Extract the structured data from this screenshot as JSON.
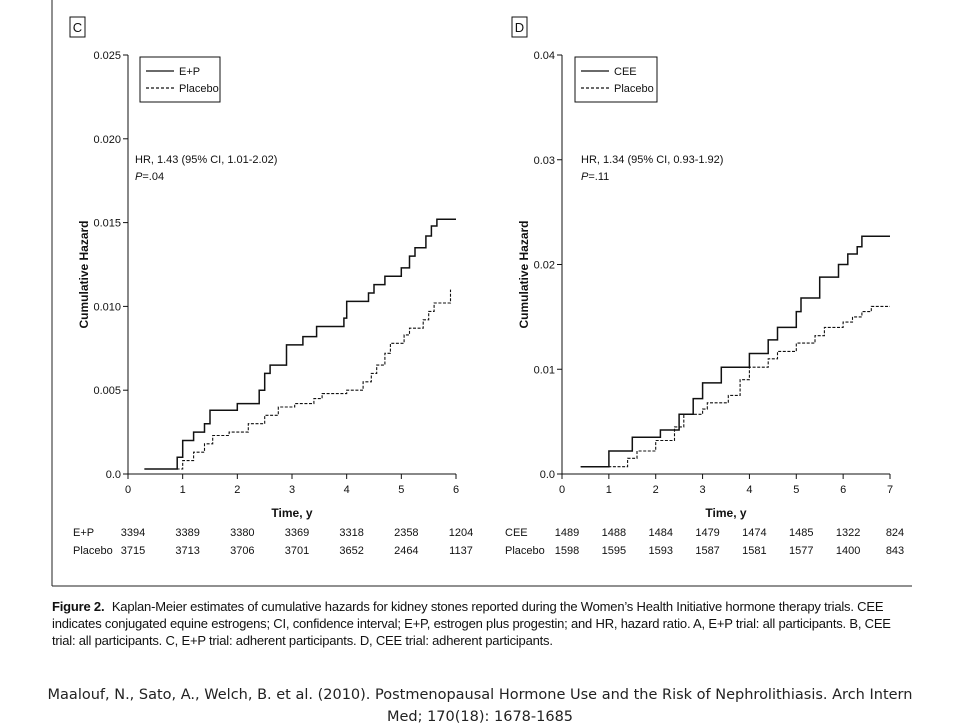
{
  "figure_caption": {
    "label": "Figure 2.",
    "text": "Kaplan-Meier estimates of cumulative hazards for kidney stones reported during the Women’s Health Initiative hormone therapy trials. CEE indicates conjugated equine estrogens; CI, confidence interval; E+P, estrogen plus progestin; and HR, hazard ratio. A, E+P trial: all participants. B, CEE trial: all participants. C, E+P trial: adherent participants. D, CEE trial: adherent participants."
  },
  "citation": {
    "line1": "Maalouf, N., Sato, A., Welch, B. et al. (2010). Postmenopausal Hormone Use and the Risk of Nephrolithiasis. Arch Intern",
    "line2": "Med; 170(18): 1678-1685"
  },
  "chart_data": [
    {
      "panel": "C",
      "type": "line",
      "xlabel": "Time, y",
      "ylabel": "Cumulative Hazard",
      "xlim": [
        0,
        6
      ],
      "ylim": [
        0,
        0.025
      ],
      "x_ticks": [
        0,
        1,
        2,
        3,
        4,
        5,
        6
      ],
      "y_ticks": [
        "0.0",
        "0.005",
        "0.010",
        "0.015",
        "0.020",
        "0.025"
      ],
      "legend": {
        "position": "top-left",
        "entries": [
          {
            "label": "E+P",
            "style": "solid"
          },
          {
            "label": "Placebo",
            "style": "dashed"
          }
        ]
      },
      "annotation": {
        "hr": "HR, 1.43 (95% CI, 1.01-2.02)",
        "p": "P=.04"
      },
      "series": [
        {
          "name": "E+P",
          "style": "solid",
          "points": [
            [
              0.3,
              0.0003
            ],
            [
              0.9,
              0.0003
            ],
            [
              0.9,
              0.001
            ],
            [
              1.0,
              0.001
            ],
            [
              1.0,
              0.002
            ],
            [
              1.2,
              0.002
            ],
            [
              1.2,
              0.0025
            ],
            [
              1.4,
              0.0025
            ],
            [
              1.4,
              0.003
            ],
            [
              1.5,
              0.003
            ],
            [
              1.5,
              0.0038
            ],
            [
              2.0,
              0.0038
            ],
            [
              2.0,
              0.0042
            ],
            [
              2.4,
              0.0042
            ],
            [
              2.4,
              0.005
            ],
            [
              2.5,
              0.005
            ],
            [
              2.5,
              0.006
            ],
            [
              2.6,
              0.006
            ],
            [
              2.6,
              0.0065
            ],
            [
              2.9,
              0.0065
            ],
            [
              2.9,
              0.0077
            ],
            [
              3.2,
              0.0077
            ],
            [
              3.2,
              0.0082
            ],
            [
              3.45,
              0.0082
            ],
            [
              3.45,
              0.0088
            ],
            [
              3.95,
              0.0088
            ],
            [
              3.95,
              0.0093
            ],
            [
              4.0,
              0.0093
            ],
            [
              4.0,
              0.0103
            ],
            [
              4.4,
              0.0103
            ],
            [
              4.4,
              0.0108
            ],
            [
              4.5,
              0.0108
            ],
            [
              4.5,
              0.0113
            ],
            [
              4.7,
              0.0113
            ],
            [
              4.7,
              0.0118
            ],
            [
              5.0,
              0.0118
            ],
            [
              5.0,
              0.0123
            ],
            [
              5.15,
              0.0123
            ],
            [
              5.15,
              0.013
            ],
            [
              5.25,
              0.013
            ],
            [
              5.25,
              0.0135
            ],
            [
              5.45,
              0.0135
            ],
            [
              5.45,
              0.0142
            ],
            [
              5.55,
              0.0142
            ],
            [
              5.55,
              0.0148
            ],
            [
              5.65,
              0.0148
            ],
            [
              5.65,
              0.0152
            ],
            [
              6.0,
              0.0152
            ]
          ]
        },
        {
          "name": "Placebo",
          "style": "dashed",
          "points": [
            [
              0.3,
              0.0003
            ],
            [
              1.0,
              0.0003
            ],
            [
              1.0,
              0.0008
            ],
            [
              1.2,
              0.0008
            ],
            [
              1.2,
              0.0013
            ],
            [
              1.4,
              0.0013
            ],
            [
              1.4,
              0.0018
            ],
            [
              1.55,
              0.0018
            ],
            [
              1.55,
              0.0023
            ],
            [
              1.85,
              0.0023
            ],
            [
              1.85,
              0.0025
            ],
            [
              2.2,
              0.0025
            ],
            [
              2.2,
              0.003
            ],
            [
              2.5,
              0.003
            ],
            [
              2.5,
              0.0035
            ],
            [
              2.75,
              0.0035
            ],
            [
              2.75,
              0.004
            ],
            [
              3.05,
              0.004
            ],
            [
              3.05,
              0.0042
            ],
            [
              3.4,
              0.0042
            ],
            [
              3.4,
              0.0045
            ],
            [
              3.55,
              0.0045
            ],
            [
              3.55,
              0.0048
            ],
            [
              4.0,
              0.0048
            ],
            [
              4.0,
              0.005
            ],
            [
              4.3,
              0.005
            ],
            [
              4.3,
              0.0055
            ],
            [
              4.45,
              0.0055
            ],
            [
              4.45,
              0.006
            ],
            [
              4.55,
              0.006
            ],
            [
              4.55,
              0.0065
            ],
            [
              4.7,
              0.0065
            ],
            [
              4.7,
              0.0072
            ],
            [
              4.8,
              0.0072
            ],
            [
              4.8,
              0.0078
            ],
            [
              5.05,
              0.0078
            ],
            [
              5.05,
              0.0083
            ],
            [
              5.15,
              0.0083
            ],
            [
              5.15,
              0.0087
            ],
            [
              5.4,
              0.0087
            ],
            [
              5.4,
              0.0092
            ],
            [
              5.5,
              0.0092
            ],
            [
              5.5,
              0.0097
            ],
            [
              5.6,
              0.0097
            ],
            [
              5.6,
              0.0102
            ],
            [
              5.9,
              0.0102
            ],
            [
              5.9,
              0.011
            ]
          ]
        }
      ],
      "risk_table": {
        "rows": [
          {
            "label": "E+P",
            "values": [
              "3394",
              "3389",
              "3380",
              "3369",
              "3318",
              "2358",
              "1204"
            ]
          },
          {
            "label": "Placebo",
            "values": [
              "3715",
              "3713",
              "3706",
              "3701",
              "3652",
              "2464",
              "1137"
            ]
          }
        ]
      }
    },
    {
      "panel": "D",
      "type": "line",
      "xlabel": "Time, y",
      "ylabel": "Cumulative Hazard",
      "xlim": [
        0,
        7
      ],
      "ylim": [
        0,
        0.04
      ],
      "x_ticks": [
        0,
        1,
        2,
        3,
        4,
        5,
        6,
        7
      ],
      "y_ticks": [
        "0.0",
        "0.01",
        "0.02",
        "0.03",
        "0.04"
      ],
      "legend": {
        "position": "top-left",
        "entries": [
          {
            "label": "CEE",
            "style": "solid"
          },
          {
            "label": "Placebo",
            "style": "dashed"
          }
        ]
      },
      "annotation": {
        "hr": "HR, 1.34 (95% CI, 0.93-1.92)",
        "p": "P=.11"
      },
      "series": [
        {
          "name": "CEE",
          "style": "solid",
          "points": [
            [
              0.4,
              0.0007
            ],
            [
              1.0,
              0.0007
            ],
            [
              1.0,
              0.0022
            ],
            [
              1.5,
              0.0022
            ],
            [
              1.5,
              0.0035
            ],
            [
              2.1,
              0.0035
            ],
            [
              2.1,
              0.0042
            ],
            [
              2.5,
              0.0042
            ],
            [
              2.5,
              0.0057
            ],
            [
              2.8,
              0.0057
            ],
            [
              2.8,
              0.0072
            ],
            [
              3.0,
              0.0072
            ],
            [
              3.0,
              0.0087
            ],
            [
              3.4,
              0.0087
            ],
            [
              3.4,
              0.0102
            ],
            [
              4.0,
              0.0102
            ],
            [
              4.0,
              0.0115
            ],
            [
              4.4,
              0.0115
            ],
            [
              4.4,
              0.0128
            ],
            [
              4.6,
              0.0128
            ],
            [
              4.6,
              0.014
            ],
            [
              5.0,
              0.014
            ],
            [
              5.0,
              0.0155
            ],
            [
              5.1,
              0.0155
            ],
            [
              5.1,
              0.0168
            ],
            [
              5.5,
              0.0168
            ],
            [
              5.5,
              0.0188
            ],
            [
              5.9,
              0.0188
            ],
            [
              5.9,
              0.02
            ],
            [
              6.1,
              0.02
            ],
            [
              6.1,
              0.021
            ],
            [
              6.3,
              0.021
            ],
            [
              6.3,
              0.0217
            ],
            [
              6.4,
              0.0217
            ],
            [
              6.4,
              0.0227
            ],
            [
              6.5,
              0.0227
            ],
            [
              6.5,
              0.0227
            ],
            [
              7.0,
              0.0227
            ]
          ]
        },
        {
          "name": "Placebo",
          "style": "dashed",
          "points": [
            [
              0.4,
              0.0007
            ],
            [
              1.4,
              0.0007
            ],
            [
              1.4,
              0.0015
            ],
            [
              1.6,
              0.0015
            ],
            [
              1.6,
              0.0022
            ],
            [
              2.0,
              0.0022
            ],
            [
              2.0,
              0.0032
            ],
            [
              2.4,
              0.0032
            ],
            [
              2.4,
              0.0045
            ],
            [
              2.6,
              0.0045
            ],
            [
              2.6,
              0.0057
            ],
            [
              3.0,
              0.0057
            ],
            [
              3.0,
              0.0062
            ],
            [
              3.1,
              0.0062
            ],
            [
              3.1,
              0.0068
            ],
            [
              3.55,
              0.0068
            ],
            [
              3.55,
              0.0075
            ],
            [
              3.8,
              0.0075
            ],
            [
              3.8,
              0.009
            ],
            [
              4.0,
              0.009
            ],
            [
              4.0,
              0.0102
            ],
            [
              4.4,
              0.0102
            ],
            [
              4.4,
              0.011
            ],
            [
              4.6,
              0.011
            ],
            [
              4.6,
              0.0117
            ],
            [
              5.0,
              0.0117
            ],
            [
              5.0,
              0.0125
            ],
            [
              5.4,
              0.0125
            ],
            [
              5.4,
              0.0132
            ],
            [
              5.6,
              0.0132
            ],
            [
              5.6,
              0.014
            ],
            [
              6.0,
              0.014
            ],
            [
              6.0,
              0.0145
            ],
            [
              6.2,
              0.0145
            ],
            [
              6.2,
              0.015
            ],
            [
              6.4,
              0.015
            ],
            [
              6.4,
              0.0155
            ],
            [
              6.6,
              0.0155
            ],
            [
              6.6,
              0.016
            ],
            [
              7.0,
              0.016
            ]
          ]
        }
      ],
      "risk_table": {
        "rows": [
          {
            "label": "CEE",
            "values": [
              "1489",
              "1488",
              "1484",
              "1479",
              "1474",
              "1485",
              "1322",
              "824"
            ]
          },
          {
            "label": "Placebo",
            "values": [
              "1598",
              "1595",
              "1593",
              "1587",
              "1581",
              "1577",
              "1400",
              "843"
            ]
          }
        ]
      }
    }
  ]
}
